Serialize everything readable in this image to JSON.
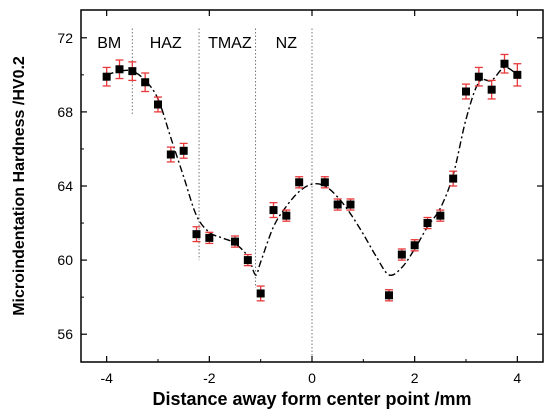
{
  "chart_data": {
    "type": "scatter",
    "xlabel": "Distance away form center point /mm",
    "ylabel": "Microindentation Hardness /HV0.2",
    "xlim": [
      -4.5,
      4.5
    ],
    "ylim": [
      54.5,
      73.5
    ],
    "xticks": [
      -4,
      -2,
      0,
      2,
      4
    ],
    "yticks": [
      56,
      60,
      64,
      68,
      72
    ],
    "xtick_labels": [
      "-4",
      "-2",
      "0",
      "2",
      "4"
    ],
    "ytick_labels": [
      "56",
      "60",
      "64",
      "68",
      "72"
    ],
    "zones": [
      {
        "label": "BM",
        "x": -3.95
      },
      {
        "label": "HAZ",
        "x": -2.85
      },
      {
        "label": "TMAZ",
        "x": -1.6
      },
      {
        "label": "NZ",
        "x": -0.5
      }
    ],
    "zone_boundaries": [
      {
        "x": -3.5,
        "y_top": 72.5,
        "y_bottom": 67.8
      },
      {
        "x": -2.2,
        "y_top": 72.5,
        "y_bottom": 60.0
      },
      {
        "x": -1.1,
        "y_top": 72.5,
        "y_bottom": 58.5
      },
      {
        "x": 0.0,
        "y_top": 72.5,
        "y_bottom": 54.5
      }
    ],
    "series": [
      {
        "x": [
          -4.0,
          -3.75,
          -3.5,
          -3.25,
          -3.0,
          -2.75,
          -2.5,
          -2.25,
          -2.0,
          -1.5,
          -1.25,
          -1.0,
          -0.75,
          -0.5,
          -0.25,
          0.25,
          0.5,
          0.75,
          1.5,
          1.75,
          2.0,
          2.25,
          2.5,
          2.75,
          3.0,
          3.25,
          3.5,
          3.75,
          4.0
        ],
        "y": [
          69.9,
          70.3,
          70.2,
          69.6,
          68.4,
          65.7,
          65.9,
          61.4,
          61.2,
          61.0,
          60.0,
          58.2,
          62.7,
          62.4,
          64.2,
          64.2,
          63.0,
          63.0,
          58.1,
          60.3,
          60.8,
          62.0,
          62.4,
          64.4,
          69.1,
          69.9,
          69.2,
          70.6,
          70.0
        ],
        "err": [
          0.5,
          0.5,
          0.5,
          0.5,
          0.4,
          0.4,
          0.4,
          0.4,
          0.3,
          0.3,
          0.3,
          0.4,
          0.4,
          0.3,
          0.3,
          0.3,
          0.3,
          0.3,
          0.3,
          0.3,
          0.3,
          0.3,
          0.3,
          0.4,
          0.4,
          0.5,
          0.5,
          0.5,
          0.6
        ]
      }
    ],
    "fit_curve": {
      "x": [
        -4.0,
        -3.75,
        -3.5,
        -3.25,
        -3.0,
        -2.75,
        -2.5,
        -2.25,
        -2.0,
        -1.75,
        -1.5,
        -1.25,
        -1.1,
        -1.0,
        -0.75,
        -0.5,
        -0.25,
        0.0,
        0.25,
        0.5,
        0.75,
        1.0,
        1.25,
        1.5,
        1.75,
        2.0,
        2.25,
        2.5,
        2.75,
        3.0,
        3.25,
        3.5,
        3.75,
        4.0
      ],
      "y": [
        70.0,
        70.2,
        70.2,
        69.7,
        68.7,
        66.6,
        64.5,
        62.4,
        61.5,
        61.2,
        60.9,
        60.2,
        59.2,
        59.9,
        61.8,
        62.9,
        63.7,
        64.1,
        64.0,
        63.4,
        62.5,
        61.4,
        60.2,
        59.2,
        59.6,
        60.6,
        61.8,
        62.8,
        64.6,
        67.6,
        69.6,
        69.7,
        70.4,
        70.0
      ]
    },
    "colors": {
      "marker": "#000000",
      "error_bar": "#e8383a",
      "fit_line": "#000000",
      "zone_line": "#777777",
      "frame": "#000000"
    }
  }
}
